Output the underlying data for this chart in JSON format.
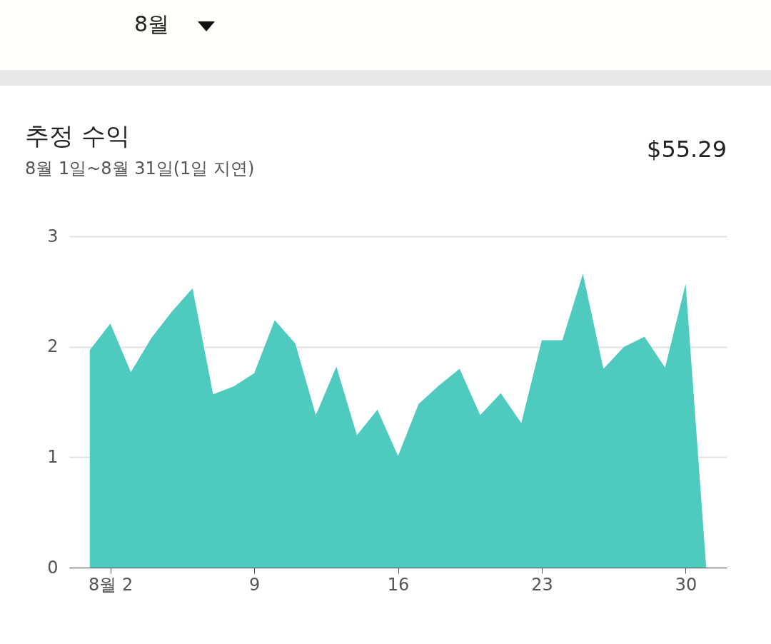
{
  "chart_data": {
    "type": "area",
    "title": "추정 수익",
    "subtitle": "8월 1일~8월 31일(1일 지연)",
    "annotations": [
      "8월",
      "$55.29"
    ],
    "x": [
      1,
      2,
      3,
      4,
      5,
      6,
      7,
      8,
      9,
      10,
      11,
      12,
      13,
      14,
      15,
      16,
      17,
      18,
      19,
      20,
      21,
      22,
      23,
      24,
      25,
      26,
      27,
      28,
      29,
      30,
      31
    ],
    "series": [
      {
        "color": "#4fcabf",
        "values": [
          1.97,
          2.21,
          1.77,
          2.08,
          2.32,
          2.53,
          1.57,
          1.64,
          1.76,
          2.24,
          2.03,
          1.38,
          1.82,
          1.2,
          1.43,
          1.01,
          1.48,
          1.65,
          1.8,
          1.38,
          1.58,
          1.31,
          2.06,
          2.06,
          2.66,
          1.8,
          2.0,
          2.09,
          1.81,
          2.57,
          0
        ]
      }
    ],
    "xlim": [
      0,
      32
    ],
    "xticks": [
      {
        "value": 2,
        "label": "8월 2"
      },
      9,
      16,
      23,
      30
    ],
    "ylim": [
      0,
      3
    ],
    "yticks": [
      0,
      1,
      2,
      3
    ],
    "grid": "y"
  }
}
